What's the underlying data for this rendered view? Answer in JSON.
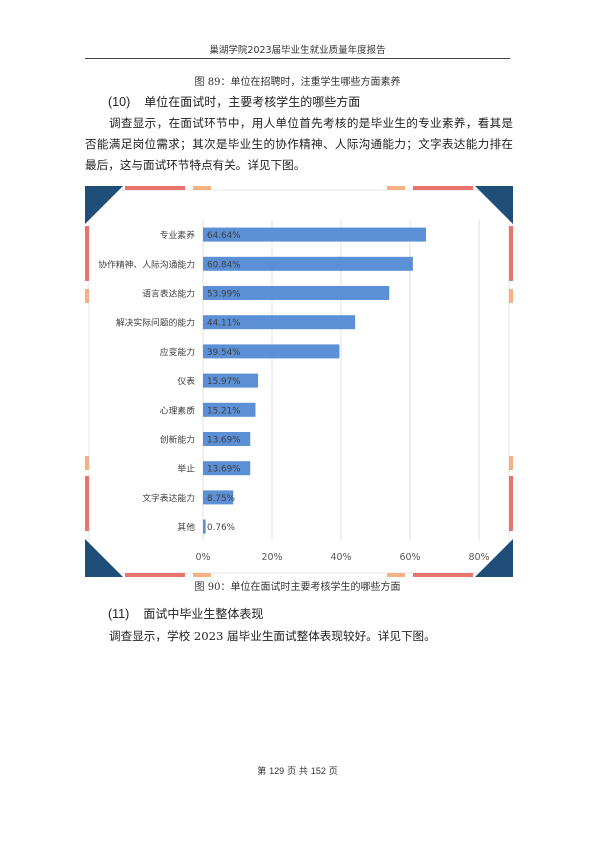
{
  "header": {
    "title": "巢湖学院2023届毕业生就业质量年度报告"
  },
  "fig89_caption": "图 89：单位在招聘时，注重学生哪些方面素养",
  "section10": {
    "number": "(10)",
    "title": "单位在面试时，主要考核学生的哪些方面"
  },
  "section10_para": "调查显示，在面试环节中，用人单位首先考核的是毕业生的专业素养，看其是否能满足岗位需求；其次是毕业生的协作精神、人际沟通能力；文字表达能力排在最后，这与面试环节特点有关。详见下图。",
  "chart_data": {
    "type": "bar",
    "orientation": "horizontal",
    "categories": [
      "专业素养",
      "协作精神、人际沟通能力",
      "语言表达能力",
      "解决实际问题的能力",
      "应变能力",
      "仪表",
      "心理素质",
      "创新能力",
      "举止",
      "文字表达能力",
      "其他"
    ],
    "values": [
      64.64,
      60.84,
      53.99,
      44.11,
      39.54,
      15.97,
      15.21,
      13.69,
      13.69,
      8.75,
      0.76
    ],
    "value_labels": [
      "64.64%",
      "60.84%",
      "53.99%",
      "44.11%",
      "39.54%",
      "15.97%",
      "15.21%",
      "13.69%",
      "13.69%",
      "8.75%",
      "0.76%"
    ],
    "xticks": [
      "0%",
      "20%",
      "40%",
      "60%",
      "80%"
    ],
    "xlim": [
      0,
      80
    ],
    "grid": true,
    "bar_color": "#5b8fd6",
    "corner_dark": "#1f4e79",
    "stripe_red": "#e8736c",
    "stripe_orange": "#f4b183"
  },
  "fig90_caption": "图 90：单位在面试时主要考核学生的哪些方面",
  "section11": {
    "number": "(11)",
    "title": "面试中毕业生整体表现"
  },
  "section11_para": "调查显示，学校 2023 届毕业生面试整体表现较好。详见下图。",
  "footer": {
    "pre": "第",
    "page": "129",
    "mid": "页  共",
    "total": "152",
    "post": "页"
  }
}
